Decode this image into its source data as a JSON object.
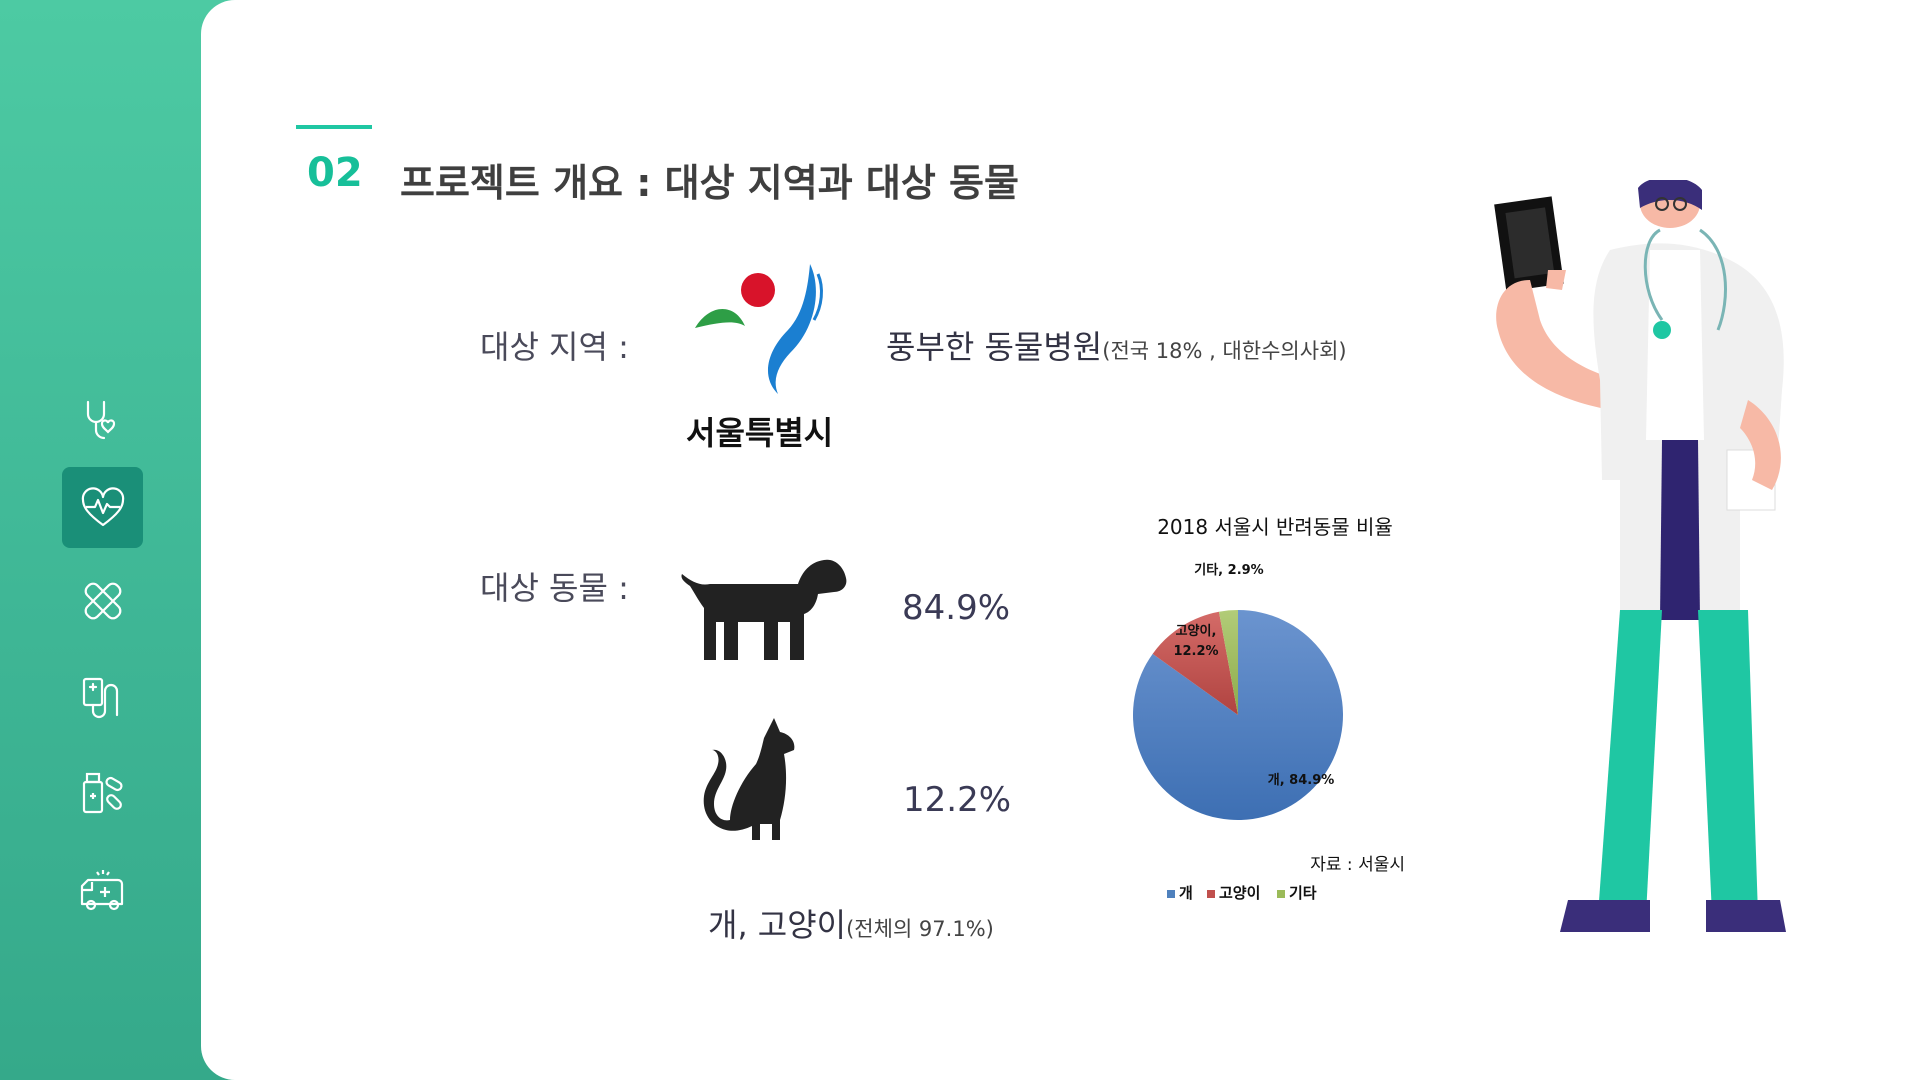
{
  "sidebar": {
    "items": [
      {
        "icon": "stethoscope-heart-icon"
      },
      {
        "icon": "heart-pulse-icon",
        "active": true
      },
      {
        "icon": "bandage-icon"
      },
      {
        "icon": "iv-drip-icon"
      },
      {
        "icon": "medicine-bottle-pills-icon"
      },
      {
        "icon": "ambulance-icon"
      }
    ],
    "accent": "#1a8f78"
  },
  "slide": {
    "number": "02",
    "title": "프로젝트 개요 : 대상 지역과 대상 동물",
    "region_label": "대상 지역 :",
    "region_logo_text": "서울특별시",
    "hospital_text": "풍부한 동물병원",
    "hospital_note": "(전국 18% , 대한수의사회)",
    "animal_label": "대상 동물 :",
    "dog_pct": "84.9%",
    "cat_pct": "12.2%",
    "summary_main": "개, 고양이",
    "summary_note": "(전체의 97.1%)"
  },
  "chart_data": {
    "type": "pie",
    "title": "2018 서울시 반려동물 비율",
    "slices": [
      {
        "label": "개",
        "value": 84.9,
        "color": "#4f81bd",
        "data_label": "개, 84.9%"
      },
      {
        "label": "고양이",
        "value": 12.2,
        "color": "#c0504d",
        "data_label_line1": "고양이,",
        "data_label_line2": "12.2%"
      },
      {
        "label": "기타",
        "value": 2.9,
        "color": "#9bbb59",
        "data_label": "기타, 2.9%"
      }
    ],
    "legend": [
      "개",
      "고양이",
      "기타"
    ],
    "legend_placement": "bottom",
    "source": "자료 : 서울시"
  }
}
